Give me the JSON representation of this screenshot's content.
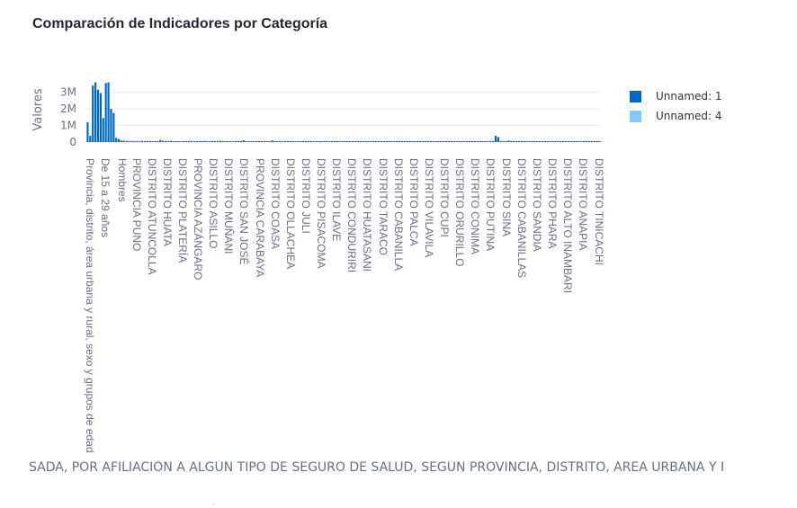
{
  "title": "Comparación de Indicadores por Categoría",
  "legend": [
    {
      "label": "Unnamed: 1",
      "color": "#0068c9"
    },
    {
      "label": "Unnamed: 4",
      "color": "#83c9ff"
    }
  ],
  "chart_data": {
    "type": "bar",
    "title": "Comparación de Indicadores por Categoría",
    "ylabel": "Valores",
    "xlabel": "SADA, POR AFILIACIÓN A ALGÚN TIPO DE SEGURO DE SALUD, SEGÚN PROVINCIA, DISTRITO,  ÁREA URBANA Y RURAL, SEXC",
    "ylim": [
      0,
      3900000
    ],
    "yticks": [
      0,
      1000000,
      2000000,
      3000000
    ],
    "ytick_labels": [
      "0",
      "1M",
      "2M",
      "3M"
    ],
    "grid": true,
    "legend_position": "right",
    "xtick_labels": [
      "Provincia, distrito, área urbana y rural, sexo y grupos de edad",
      "De 15 a 29 años",
      "Hombres",
      "PROVINCIA PUNO",
      "DISTRITO ATUNCOLLA",
      "DISTRITO HUATA",
      "DISTRITO PLATERÍA",
      "PROVINCIA AZÁNGARO",
      "DISTRITO ASILLO",
      "DISTRITO MUÑANI",
      "DISTRITO SAN JOSÉ",
      "PROVINCIA CARABAYA",
      "DISTRITO COASA",
      "DISTRITO OLLACHEA",
      "DISTRITO JULI",
      "DISTRITO PISACOMA",
      "DISTRITO ILAVE",
      "DISTRITO CONDURIRI",
      "DISTRITO HUATASANI",
      "DISTRITO TARACO",
      "DISTRITO CABANILLA",
      "DISTRITO PALCA",
      "DISTRITO VILAVILA",
      "DISTRITO CUPI",
      "DISTRITO ORURILLO",
      "DISTRITO CONIMA",
      "DISTRITO PUTINA",
      "DISTRITO SINA",
      "DISTRITO CABANILLAS",
      "DISTRITO SANDIA",
      "DISTRITO PHARA",
      "DISTRITO ALTO INAMBARI",
      "DISTRITO ANAPIA",
      "DISTRITO TINICACHI"
    ],
    "series": [
      {
        "name": "Unnamed: 1",
        "values": [
          1200000,
          380000,
          3400000,
          3600000,
          3150000,
          2950000,
          1450000,
          3550000,
          3600000,
          2000000,
          1750000,
          250000,
          180000,
          90000,
          80000,
          70000,
          60000,
          70000,
          60000,
          60000,
          50000,
          70000,
          60000,
          60000,
          60000,
          50000,
          60000,
          60000,
          130000,
          80000,
          60000,
          60000,
          70000,
          50000,
          60000,
          60000,
          50000,
          60000,
          60000,
          70000,
          60000,
          50000,
          60000,
          60000,
          60000,
          70000,
          60000,
          50000,
          60000,
          60000,
          60000,
          80000,
          60000,
          60000,
          60000,
          60000,
          50000,
          60000,
          60000,
          60000,
          110000,
          60000,
          60000,
          60000,
          50000,
          60000,
          60000,
          60000,
          60000,
          50000,
          60000,
          100000,
          60000,
          60000,
          60000,
          50000,
          60000,
          60000,
          60000,
          60000,
          50000,
          60000,
          60000,
          70000,
          60000,
          60000,
          60000,
          50000,
          60000,
          60000,
          60000,
          60000,
          60000,
          50000,
          60000,
          60000,
          60000,
          60000,
          60000,
          60000,
          60000,
          60000,
          60000,
          60000,
          60000,
          60000,
          60000,
          60000,
          60000,
          60000,
          60000,
          60000,
          60000,
          60000,
          60000,
          60000,
          60000,
          60000,
          60000,
          60000,
          60000,
          60000,
          60000,
          60000,
          60000,
          60000,
          60000,
          60000,
          60000,
          60000,
          60000,
          60000,
          60000,
          60000,
          60000,
          60000,
          60000,
          60000,
          60000,
          60000,
          60000,
          60000,
          60000,
          60000,
          60000,
          60000,
          60000,
          60000,
          60000,
          60000,
          60000,
          60000,
          60000,
          60000,
          60000,
          60000,
          60000,
          380000,
          300000,
          60000,
          60000,
          60000,
          90000,
          60000,
          60000,
          60000,
          60000,
          60000,
          60000,
          60000,
          60000,
          60000,
          60000,
          60000,
          60000,
          60000,
          60000,
          60000,
          60000,
          60000,
          60000,
          60000,
          60000,
          60000,
          60000,
          60000,
          60000,
          60000,
          60000,
          60000,
          60000,
          60000,
          60000,
          60000,
          60000,
          60000,
          60000,
          60000
        ]
      },
      {
        "name": "Unnamed: 4",
        "values": [
          0,
          0,
          0,
          0,
          0,
          0,
          0,
          0,
          0,
          0,
          0,
          0,
          0,
          0,
          0,
          0,
          0,
          0,
          0,
          0,
          0,
          0,
          0,
          0,
          0,
          0,
          0,
          0,
          0,
          0,
          0,
          0,
          0,
          0,
          0,
          0,
          0,
          0,
          0,
          0,
          0,
          0,
          0,
          0,
          0,
          0,
          0,
          0,
          0,
          0,
          0,
          0,
          0,
          0,
          0,
          0,
          0,
          0,
          0,
          0,
          0,
          0,
          0,
          0,
          0,
          0,
          0,
          0,
          0,
          0,
          0,
          0,
          0,
          0,
          0,
          0,
          0,
          0,
          0,
          0,
          0,
          0,
          0,
          0,
          0,
          0,
          0,
          0,
          0,
          0,
          0,
          0,
          0,
          0,
          0,
          0,
          0,
          0,
          0,
          0,
          0,
          0,
          0,
          0,
          0,
          0,
          0,
          0,
          0,
          0,
          0,
          0,
          0,
          0,
          0,
          0,
          0,
          0,
          0,
          0,
          0,
          0,
          0,
          0,
          0,
          0,
          0,
          0,
          0,
          0,
          0,
          0,
          0,
          0,
          0,
          0,
          0,
          0,
          0,
          0,
          0,
          0,
          0,
          0,
          0,
          0,
          0,
          0,
          0,
          0,
          0,
          0,
          0,
          0,
          0,
          0,
          0,
          0,
          0,
          0,
          0,
          0,
          0,
          0,
          0,
          0,
          0,
          0,
          0,
          0,
          0,
          0,
          0,
          0,
          0,
          0,
          0,
          0,
          0,
          0,
          0,
          0,
          0,
          0,
          0,
          0,
          0,
          0,
          0,
          0,
          0,
          0,
          0,
          0
        ]
      }
    ]
  }
}
